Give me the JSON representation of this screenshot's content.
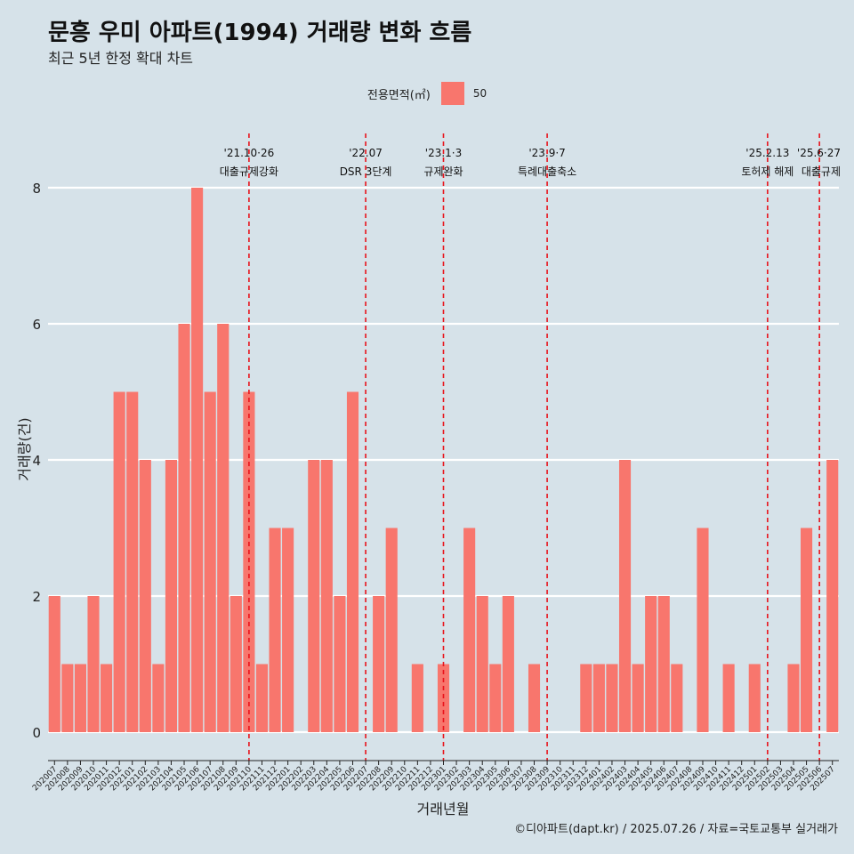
{
  "title": "문흥 우미 아파트(1994) 거래량 변화 흐름",
  "subtitle": "최근 5년 한정 확대 차트",
  "legend": {
    "title": "전용면적(㎡)",
    "label": "50"
  },
  "caption": "©디아파트(dapt.kr) / 2025.07.26 / 자료=국토교통부 실거래가",
  "colors": {
    "bar": "#f8766d",
    "background": "#d6e2e9",
    "event_line": "#e8131b",
    "grid": "#ffffff"
  },
  "chart_data": {
    "type": "bar",
    "xlabel": "거래년월",
    "ylabel": "거래량(건)",
    "ylim": [
      0,
      8
    ],
    "yticks": [
      0,
      2,
      4,
      6,
      8
    ],
    "grid": true,
    "legend_position": "top",
    "categories": [
      "202007",
      "202008",
      "202009",
      "202010",
      "202011",
      "202012",
      "202101",
      "202102",
      "202103",
      "202104",
      "202105",
      "202106",
      "202107",
      "202108",
      "202109",
      "202110",
      "202111",
      "202112",
      "202201",
      "202202",
      "202203",
      "202204",
      "202205",
      "202206",
      "202207",
      "202208",
      "202209",
      "202210",
      "202211",
      "202212",
      "202301",
      "202302",
      "202303",
      "202304",
      "202305",
      "202306",
      "202307",
      "202308",
      "202309",
      "202310",
      "202311",
      "202312",
      "202401",
      "202402",
      "202403",
      "202404",
      "202405",
      "202406",
      "202407",
      "202408",
      "202409",
      "202410",
      "202411",
      "202412",
      "202501",
      "202502",
      "202503",
      "202504",
      "202505",
      "202506",
      "202507"
    ],
    "series": [
      {
        "name": "50",
        "values": [
          2,
          1,
          1,
          2,
          1,
          5,
          5,
          4,
          1,
          4,
          6,
          8,
          5,
          6,
          2,
          5,
          1,
          3,
          3,
          0,
          4,
          4,
          2,
          5,
          0,
          2,
          3,
          0,
          1,
          0,
          1,
          0,
          3,
          2,
          1,
          2,
          0,
          1,
          0,
          0,
          0,
          1,
          1,
          1,
          4,
          1,
          2,
          2,
          1,
          0,
          3,
          0,
          1,
          0,
          1,
          0,
          0,
          1,
          3,
          0,
          4
        ]
      }
    ],
    "annotations": [
      {
        "category": "202110",
        "date": "'21.10·26",
        "text": "대출규제강화"
      },
      {
        "category": "202207",
        "date": "'22.07",
        "text": "DSR 3단계"
      },
      {
        "category": "202301",
        "date": "'23.1·3",
        "text": "규제완화"
      },
      {
        "category": "202309",
        "date": "'23.9·7",
        "text": "특례대출축소"
      },
      {
        "category": "202502",
        "date": "'25.2.13",
        "text": "토허제 해제"
      },
      {
        "category": "202506",
        "date": "'25.6·27",
        "text": "대출규제"
      }
    ]
  }
}
